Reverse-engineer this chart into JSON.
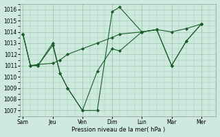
{
  "background_color": "#ceeade",
  "grid_color": "#9ec8b4",
  "line_color": "#1a5c28",
  "marker_color": "#1a5c28",
  "xlabel": "Pression niveau de la mer( hPa )",
  "ylim": [
    1006.5,
    1016.5
  ],
  "yticks": [
    1007,
    1008,
    1009,
    1010,
    1011,
    1012,
    1013,
    1014,
    1015,
    1016
  ],
  "day_labels": [
    "Sam",
    "Jeu",
    "Ven",
    "Dim",
    "Lun",
    "Mar",
    "Mer"
  ],
  "day_positions": [
    0,
    2,
    4,
    6,
    8,
    10,
    12
  ],
  "series": [
    {
      "x": [
        0,
        0.5,
        1,
        2,
        2.5,
        3,
        4,
        5,
        6,
        6.5,
        8,
        9,
        10,
        11,
        12
      ],
      "y": [
        1013.8,
        1011.0,
        1011.0,
        1012.8,
        1010.3,
        1009.0,
        1007.0,
        1007.0,
        1015.8,
        1016.2,
        1014.0,
        1014.2,
        1011.0,
        1013.2,
        1014.7
      ]
    },
    {
      "x": [
        0,
        0.5,
        1,
        2,
        2.5,
        3,
        4,
        5,
        6,
        6.5,
        8,
        9,
        10,
        11,
        12
      ],
      "y": [
        1013.8,
        1011.0,
        1011.0,
        1013.0,
        1010.3,
        1009.0,
        1007.0,
        1010.5,
        1012.5,
        1012.3,
        1014.0,
        1014.2,
        1011.0,
        1013.2,
        1014.7
      ]
    },
    {
      "x": [
        0,
        0.5,
        1,
        2,
        2.5,
        3,
        4,
        5,
        6,
        6.5,
        8,
        9,
        10,
        11,
        12
      ],
      "y": [
        1013.8,
        1011.0,
        1011.1,
        1011.2,
        1011.5,
        1012.0,
        1012.5,
        1013.0,
        1013.5,
        1013.8,
        1014.0,
        1014.2,
        1014.0,
        1014.3,
        1014.7
      ]
    }
  ],
  "xlim": [
    -0.2,
    13.0
  ],
  "figsize": [
    3.2,
    2.0
  ],
  "dpi": 100
}
